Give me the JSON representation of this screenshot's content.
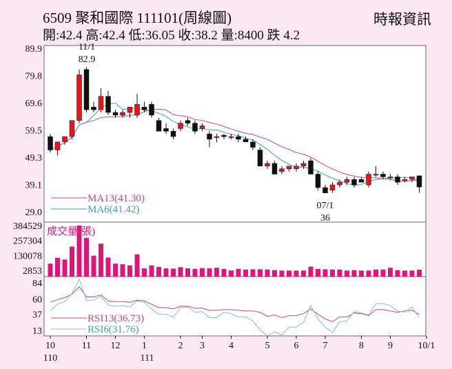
{
  "header": {
    "title": "6509  聚和國際 111101(周線圖)",
    "source": "時報資訊",
    "info": "開:42.4 高:42.4 低:36.05 收:38.2 量:8400 跌 4.2"
  },
  "colors": {
    "up": "#e8141e",
    "down": "#111111",
    "ma13": "#d6406e",
    "ma6": "#3aa0c0",
    "volume": "#e0157a",
    "rsi13": "#d6406e",
    "rsi6": "#7fc0d0",
    "bg": "#fce8f1"
  },
  "chart_data": [
    {
      "type": "candlestick",
      "title": "price",
      "ylim": [
        29.0,
        89.9
      ],
      "yticks": [
        "89.9",
        "79.8",
        "69.6",
        "59.5",
        "49.3",
        "39.1",
        "29.0"
      ],
      "ohlc": [
        [
          57,
          58,
          51,
          52
        ],
        [
          52,
          55,
          50,
          55
        ],
        [
          55,
          57,
          54,
          57
        ],
        [
          57,
          63,
          56,
          63
        ],
        [
          63,
          82,
          62,
          80
        ],
        [
          82,
          82.9,
          66,
          67
        ],
        [
          68,
          70,
          66,
          67
        ],
        [
          67,
          75,
          66,
          72
        ],
        [
          72,
          74,
          65,
          66
        ],
        [
          66,
          67,
          64,
          65
        ],
        [
          65,
          67,
          64,
          66
        ],
        [
          66,
          68,
          64,
          68
        ],
        [
          65,
          73,
          64,
          69
        ],
        [
          68,
          70,
          66,
          67
        ],
        [
          69,
          70,
          64,
          65
        ],
        [
          63,
          64,
          59,
          59
        ],
        [
          60,
          62,
          58,
          59
        ],
        [
          59,
          60,
          56,
          57
        ],
        [
          60,
          63,
          59,
          62
        ],
        [
          63,
          64,
          61,
          62
        ],
        [
          62,
          63,
          58,
          59
        ],
        [
          60,
          62,
          59,
          61
        ],
        [
          58,
          59,
          53,
          56
        ],
        [
          57,
          58,
          55,
          57
        ],
        [
          57.5,
          58,
          56,
          57
        ],
        [
          57,
          58,
          56,
          57
        ],
        [
          57,
          58,
          55,
          56
        ],
        [
          56,
          57,
          55,
          55
        ],
        [
          55,
          56,
          52,
          53
        ],
        [
          52,
          53,
          46,
          46
        ],
        [
          46,
          48,
          45,
          47
        ],
        [
          47,
          48,
          43,
          43
        ],
        [
          44,
          46,
          43,
          45
        ],
        [
          45,
          46,
          44,
          46
        ],
        [
          45,
          47,
          44,
          46
        ],
        [
          46,
          48,
          45,
          47
        ],
        [
          48,
          49,
          43,
          43
        ],
        [
          43,
          44,
          37,
          38
        ],
        [
          38,
          39,
          36,
          36
        ],
        [
          37,
          40,
          36,
          39
        ],
        [
          39,
          41,
          38,
          40
        ],
        [
          40,
          42,
          39,
          41
        ],
        [
          41,
          42,
          38,
          39
        ],
        [
          41,
          42,
          40,
          40
        ],
        [
          39,
          44,
          38,
          43
        ],
        [
          43,
          46,
          42,
          43
        ],
        [
          43,
          44,
          41,
          42
        ],
        [
          42,
          43,
          41,
          42
        ],
        [
          42,
          43,
          39,
          40
        ],
        [
          41,
          42,
          40,
          41
        ],
        [
          41,
          42,
          40,
          42
        ],
        [
          42.4,
          42.4,
          36.05,
          38.2
        ]
      ],
      "annotations": [
        {
          "label": "11/1",
          "value": "82.9"
        },
        {
          "label": "07/1",
          "value": "36"
        }
      ],
      "legend": [
        {
          "name": "MA13(41.30)"
        },
        {
          "name": "MA6(41.42)"
        }
      ]
    },
    {
      "type": "bar",
      "title": "成交量(張)",
      "yticks": [
        "384529",
        "257304",
        "130078",
        "2853"
      ],
      "values": [
        60000,
        110000,
        95000,
        205000,
        384529,
        280000,
        128000,
        230000,
        112000,
        60000,
        55000,
        45000,
        140000,
        20000,
        45000,
        32000,
        20000,
        18000,
        30000,
        20000,
        15000,
        22000,
        20000,
        25000,
        15000,
        2000,
        15000,
        10000,
        12000,
        12000,
        10000,
        5000,
        1000,
        1000,
        1000,
        1000,
        35000,
        15000,
        12000,
        10000,
        10000,
        1000,
        5000,
        1000,
        1000,
        10000,
        10000,
        25000,
        5000,
        1000,
        1000,
        8400
      ]
    },
    {
      "type": "line",
      "title": "RSI",
      "ylim": [
        0,
        100
      ],
      "yticks": [
        "84",
        "60",
        "37",
        "13"
      ],
      "series": [
        {
          "name": "RSI13(36.73)",
          "values": [
            55,
            59,
            62,
            67,
            78,
            63,
            63,
            66,
            57,
            56,
            56,
            55,
            58,
            57,
            52,
            47,
            47,
            45,
            49,
            49,
            46,
            46,
            43,
            43,
            44,
            44,
            43,
            42,
            42,
            40,
            34,
            36,
            32,
            35,
            35,
            38,
            45,
            37,
            30,
            26,
            33,
            33,
            39,
            38,
            35,
            44,
            44,
            42,
            40,
            42,
            43,
            36.73
          ]
        },
        {
          "name": "RSI6(31.76)",
          "values": [
            42,
            52,
            56,
            68,
            89,
            58,
            58,
            64,
            51,
            49,
            50,
            48,
            57,
            55,
            45,
            37,
            37,
            33,
            47,
            48,
            40,
            41,
            32,
            32,
            40,
            38,
            33,
            33,
            27,
            14,
            4,
            11,
            6,
            18,
            18,
            25,
            50,
            30,
            18,
            10,
            26,
            27,
            41,
            39,
            36,
            53,
            53,
            50,
            42,
            40,
            48,
            31.76
          ]
        }
      ]
    }
  ],
  "xaxis": {
    "ticks": [
      "10",
      "11",
      "12",
      "1",
      "2",
      "3",
      "4",
      "5",
      "6",
      "7",
      "8",
      "9",
      "10/1"
    ],
    "tick_weeks": [
      0,
      5,
      9,
      13,
      18,
      21,
      25,
      30,
      34,
      38,
      43,
      47,
      52
    ],
    "years": [
      "110",
      "111"
    ]
  }
}
